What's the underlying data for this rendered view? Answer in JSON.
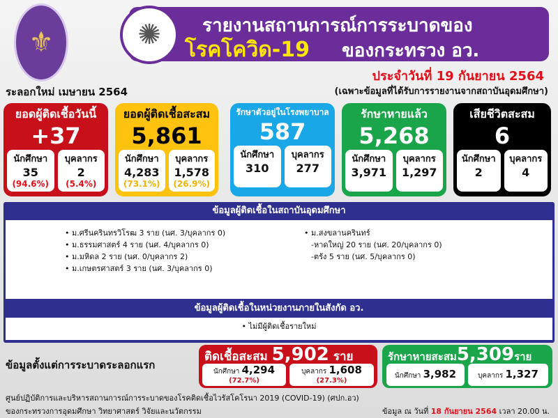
{
  "header": {
    "line1": "รายงานสถานการณ์การระบาดของ",
    "line2_yellow": "โรคโควิด-19",
    "line2_white": "ของกระทรวง อว.",
    "date": "ประจำวันที่ 19 กันยายน 2564",
    "note": "(เฉพาะข้อมูลที่ได้รับการรายงานจากสถาบันอุดมศึกษา)",
    "wave": "ระลอกใหม่ เมษายน 2564"
  },
  "colors": {
    "red": "#c8101a",
    "yellow": "#ffc20e",
    "blue": "#1aa7e8",
    "green": "#1aa54a",
    "black": "#000000",
    "purple": "#6a2d9a",
    "navy": "#2e2f8f"
  },
  "cards": [
    {
      "title": "ยอดผู้ติดเชื้อวันนี้",
      "value": "+37",
      "student_label": "นักศึกษา",
      "student": "35",
      "student_pct": "(94.6%)",
      "staff_label": "บุคลากร",
      "staff": "2",
      "staff_pct": "(5.4%)"
    },
    {
      "title": "ยอดผู้ติดเชื้อสะสม",
      "value": "5,861",
      "student_label": "นักศึกษา",
      "student": "4,283",
      "student_pct": "(73.1%)",
      "staff_label": "บุคลากร",
      "staff": "1,578",
      "staff_pct": "(26.9%)"
    },
    {
      "title": "รักษาตัวอยู่ในโรงพยาบาล",
      "value": "587",
      "student_label": "นักศึกษา",
      "student": "310",
      "staff_label": "บุคลากร",
      "staff": "277"
    },
    {
      "title": "รักษาหายแล้ว",
      "value": "5,268",
      "student_label": "นักศึกษา",
      "student": "3,971",
      "staff_label": "บุคลากร",
      "staff": "1,297"
    },
    {
      "title": "เสียชีวิตสะสม",
      "value": "6",
      "student_label": "นักศึกษา",
      "student": "2",
      "staff_label": "บุคลากร",
      "staff": "4"
    }
  ],
  "institutions": {
    "title": "ข้อมูลผู้ติดเชื้อในสถาบันอุดมศึกษา",
    "left": [
      "• ม.ศรีนครินทรวิโรฒ 3 ราย (นศ. 3/บุคลากร 0)",
      "• ม.ธรรมศาสตร์ 4 ราย (นศ. 4/บุคลากร 0)",
      "• ม.มหิดล 2 ราย (นศ. 0/บุคลากร 2)",
      "• ม.เกษตรศาสตร์ 3 ราย (นศ. 3/บุคลากร 0)"
    ],
    "right": [
      "• ม.สงขลานครินทร์",
      "-หาดใหญ่ 20 ราย (นศ. 20/บุคลากร 0)",
      "-ตรัง 5 ราย (นศ. 5/บุคลากร 0)"
    ]
  },
  "agencies": {
    "title": "ข้อมูลผู้ติดเชื้อในหน่วยงานภายในสังกัด อว.",
    "items": [
      "• ไม่มีผู้ติดเชื้อรายใหม่"
    ]
  },
  "since_first": {
    "label": "ข้อมูลตั้งแต่การระบาดระลอกแรก",
    "infected": {
      "title": "ติดเชื้อสะสม",
      "value": "5,902",
      "unit": "ราย",
      "student_label": "นักศึกษา",
      "student": "4,294",
      "student_pct": "(72.7%)",
      "staff_label": "บุคลากร",
      "staff": "1,608",
      "staff_pct": "(27.3%)"
    },
    "recovered": {
      "title": "รักษาหายสะสม",
      "value": "5,309",
      "unit": "ราย",
      "student_label": "นักศึกษา",
      "student": "3,982",
      "staff_label": "บุคลากร",
      "staff": "1,327"
    }
  },
  "footer": {
    "line1": "ศูนย์ปฏิบัติการและบริหารสถานการณ์การระบาดของโรคติดเชื้อไวรัสโคโรนา 2019 (COVID-19) (ศปก.อว)",
    "line2": "ของกระทรวงการอุดมศึกษา วิทยาศาสตร์ วิจัยและนวัตกรรม",
    "asof_prefix": "ข้อมูล ณ วันที่",
    "asof_date": "18 กันยายน 2564",
    "asof_time": "เวลา 20.00 น."
  }
}
